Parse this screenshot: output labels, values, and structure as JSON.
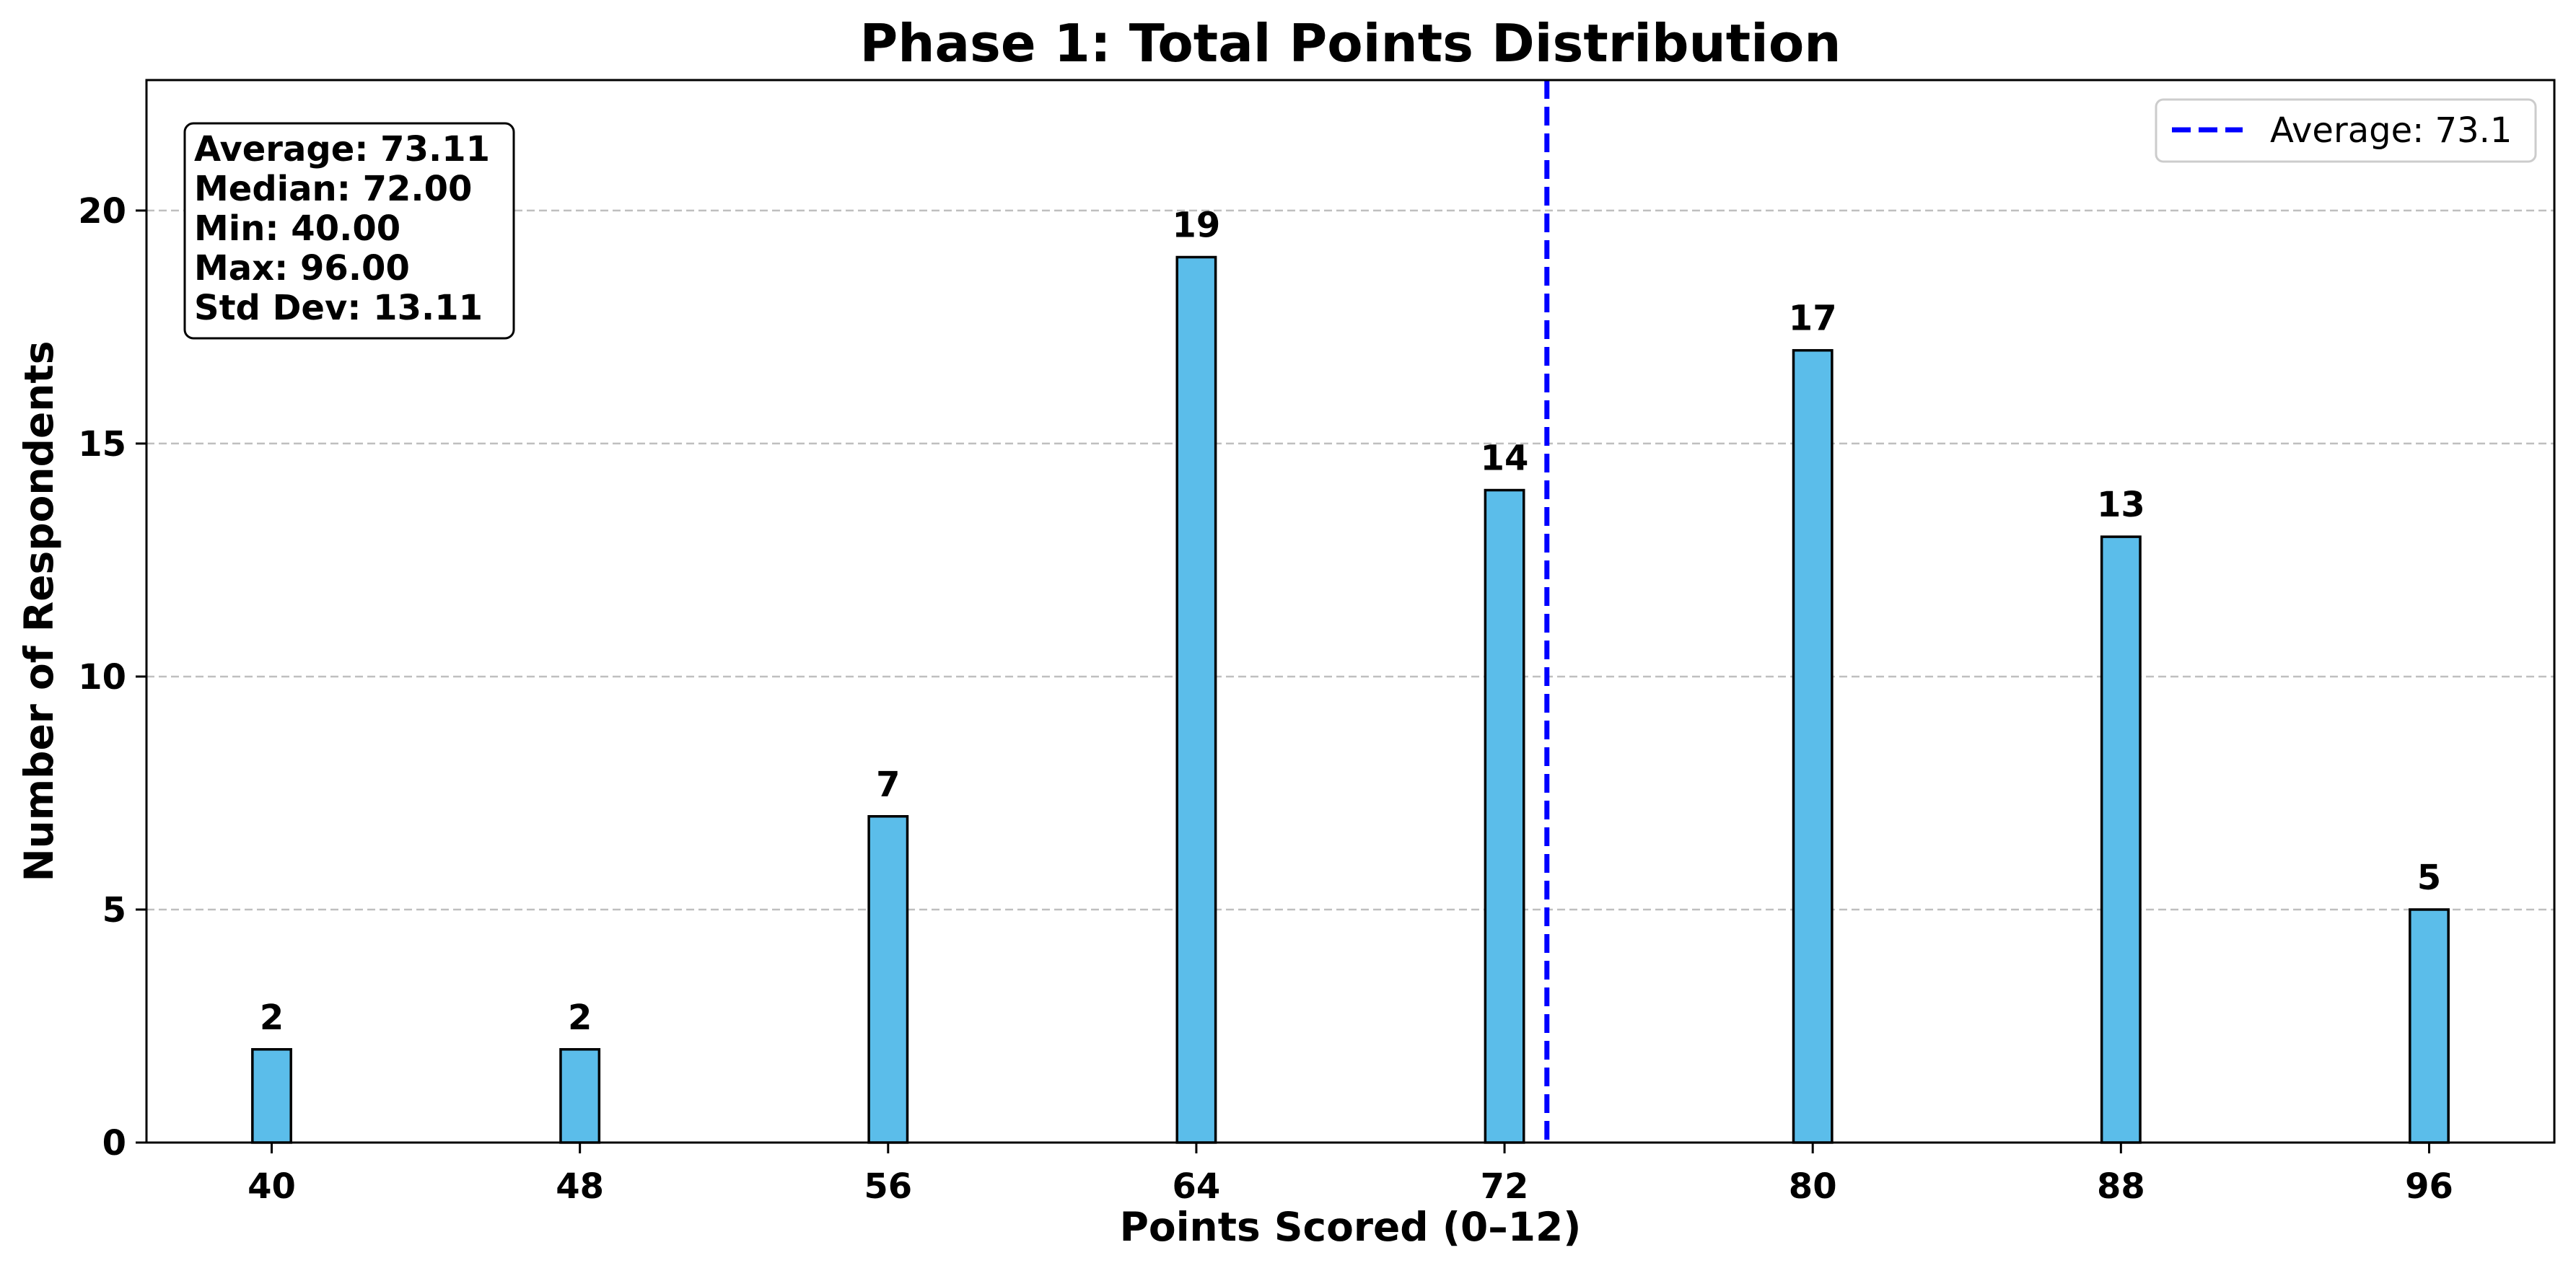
{
  "chart_data": {
    "type": "bar",
    "title": "Phase 1: Total Points Distribution",
    "xlabel": "Points Scored (0–12)",
    "ylabel": "Number of Respondents",
    "x": [
      40,
      48,
      56,
      64,
      72,
      80,
      88,
      96
    ],
    "values": [
      2,
      2,
      7,
      19,
      14,
      17,
      13,
      5
    ],
    "data_labels": [
      "2",
      "2",
      "7",
      "19",
      "14",
      "17",
      "13",
      "5"
    ],
    "xticks": [
      "40",
      "48",
      "56",
      "64",
      "72",
      "80",
      "88",
      "96"
    ],
    "yticks": [
      "0",
      "5",
      "10",
      "15",
      "20"
    ],
    "xlim": [
      36.75,
      99.25
    ],
    "ylim": [
      0,
      22.8
    ],
    "grid": "y-dashed",
    "bar_color": "#5bbdea",
    "average_line": {
      "value": 73.1,
      "color": "#0000ff",
      "style": "dashed"
    },
    "legend": {
      "position": "top-right",
      "entries": [
        "Average: 73.1"
      ]
    },
    "stats_box": {
      "lines": [
        "Average: 73.11",
        "Median: 72.00",
        "Min: 40.00",
        "Max: 96.00",
        "Std Dev: 13.11"
      ]
    }
  }
}
